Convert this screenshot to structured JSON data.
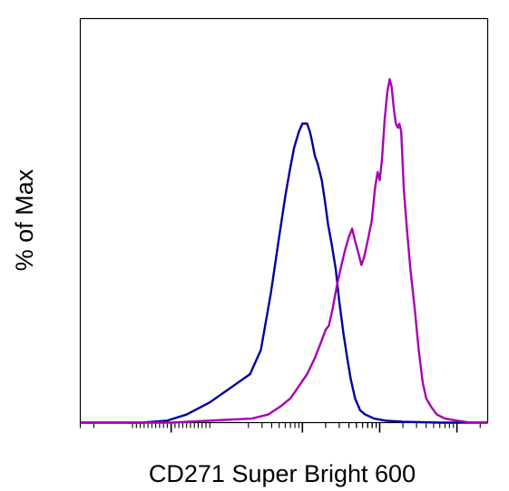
{
  "chart_data": {
    "type": "line",
    "title": "",
    "xlabel": "CD271 Super Bright 600",
    "ylabel": "% of Max",
    "x_scale": "log",
    "xlim": [
      -300,
      250000
    ],
    "ylim": [
      0,
      100
    ],
    "grid": false,
    "legend": "none",
    "series": [
      {
        "color": "#00009e",
        "points": [
          [
            -300,
            0
          ],
          [
            -75,
            0
          ],
          [
            -10,
            0.5
          ],
          [
            40,
            2
          ],
          [
            100,
            5
          ],
          [
            210,
            12
          ],
          [
            290,
            18
          ],
          [
            390,
            32
          ],
          [
            450,
            40
          ],
          [
            500,
            46
          ],
          [
            600,
            56
          ],
          [
            680,
            62
          ],
          [
            780,
            68
          ],
          [
            900,
            72
          ],
          [
            1000,
            74
          ],
          [
            1150,
            74
          ],
          [
            1250,
            72
          ],
          [
            1320,
            70
          ],
          [
            1450,
            66
          ],
          [
            1580,
            64
          ],
          [
            1780,
            60
          ],
          [
            1950,
            55
          ],
          [
            2150,
            49
          ],
          [
            2400,
            44
          ],
          [
            2700,
            38
          ],
          [
            3000,
            30
          ],
          [
            3400,
            22
          ],
          [
            3800,
            16
          ],
          [
            4200,
            11
          ],
          [
            4800,
            6
          ],
          [
            5600,
            3
          ],
          [
            6500,
            2
          ],
          [
            8500,
            1
          ],
          [
            12000,
            0.5
          ],
          [
            20000,
            0.2
          ],
          [
            60000,
            0
          ],
          [
            250000,
            0
          ]
        ]
      },
      {
        "color": "#a800b4",
        "points": [
          [
            -300,
            0
          ],
          [
            -75,
            0
          ],
          [
            0,
            0
          ],
          [
            100,
            0.5
          ],
          [
            220,
            1
          ],
          [
            360,
            2
          ],
          [
            520,
            4
          ],
          [
            700,
            6
          ],
          [
            900,
            9
          ],
          [
            1150,
            12
          ],
          [
            1450,
            16
          ],
          [
            1750,
            20
          ],
          [
            2000,
            23
          ],
          [
            2200,
            24
          ],
          [
            2450,
            28
          ],
          [
            2800,
            34
          ],
          [
            3200,
            39
          ],
          [
            3600,
            43
          ],
          [
            4000,
            46
          ],
          [
            4400,
            48
          ],
          [
            4800,
            45
          ],
          [
            5300,
            42
          ],
          [
            5800,
            39
          ],
          [
            6300,
            41
          ],
          [
            7000,
            45
          ],
          [
            7900,
            50
          ],
          [
            8700,
            58
          ],
          [
            9400,
            62
          ],
          [
            10000,
            60
          ],
          [
            10700,
            65
          ],
          [
            11600,
            75
          ],
          [
            12600,
            82
          ],
          [
            13500,
            85
          ],
          [
            14300,
            83
          ],
          [
            15200,
            78
          ],
          [
            16200,
            74
          ],
          [
            17200,
            73
          ],
          [
            18000,
            74
          ],
          [
            19000,
            72
          ],
          [
            20500,
            58
          ],
          [
            22500,
            48
          ],
          [
            25000,
            38
          ],
          [
            28500,
            28
          ],
          [
            32000,
            18
          ],
          [
            36000,
            10
          ],
          [
            40000,
            6
          ],
          [
            46000,
            4
          ],
          [
            55000,
            2
          ],
          [
            70000,
            1
          ],
          [
            100000,
            0.5
          ],
          [
            150000,
            0
          ],
          [
            250000,
            0
          ]
        ]
      }
    ]
  }
}
